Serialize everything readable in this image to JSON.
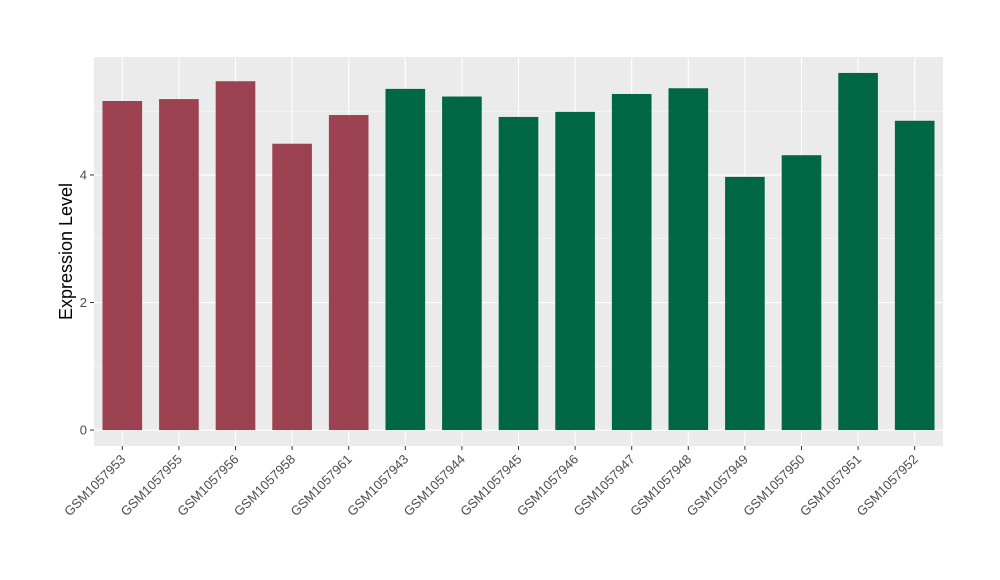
{
  "chart_data": {
    "type": "bar",
    "title": "",
    "xlabel": "",
    "ylabel": "Expression Level",
    "ylim": [
      -0.25,
      5.85
    ],
    "yticks": [
      0,
      2,
      4
    ],
    "ytick_labels": [
      "0",
      "2",
      "4"
    ],
    "grid": true,
    "legend": "none",
    "categories": [
      "GSM1057953",
      "GSM1057955",
      "GSM1057956",
      "GSM1057958",
      "GSM1057961",
      "GSM1057943",
      "GSM1057944",
      "GSM1057945",
      "GSM1057946",
      "GSM1057947",
      "GSM1057948",
      "GSM1057949",
      "GSM1057950",
      "GSM1057951",
      "GSM1057952"
    ],
    "values": [
      5.16,
      5.19,
      5.47,
      4.49,
      4.94,
      5.35,
      5.23,
      4.91,
      4.99,
      5.27,
      5.36,
      3.97,
      4.31,
      5.6,
      4.85
    ],
    "bar_colors": [
      "#9b4150",
      "#9b4150",
      "#9b4150",
      "#9b4150",
      "#9b4150",
      "#006745",
      "#006745",
      "#006745",
      "#006745",
      "#006745",
      "#006745",
      "#006745",
      "#006745",
      "#006745",
      "#006745"
    ],
    "panel_background": "#ebebeb",
    "grid_color": "#ffffff"
  }
}
